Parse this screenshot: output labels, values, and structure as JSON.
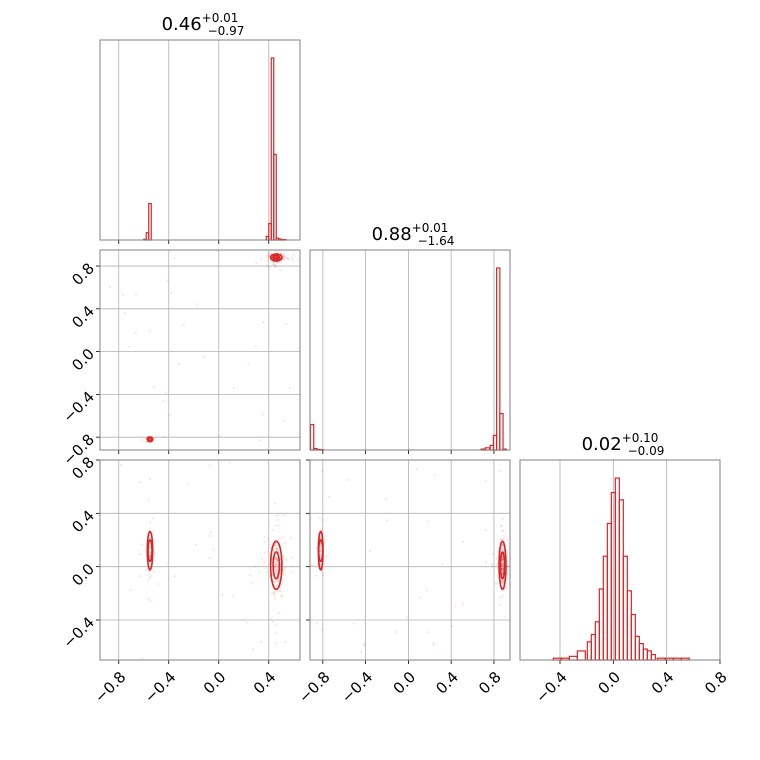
{
  "colors": {
    "series": "#d62728",
    "grid": "#b0b0b0",
    "frame": "#808080"
  },
  "chart_data": {
    "type": "corner",
    "parameters": [
      {
        "title": {
          "median": "0.46",
          "plus": "+0.01",
          "minus": "−0.97"
        },
        "range": [
          -0.95,
          0.65
        ]
      },
      {
        "title": {
          "median": "0.88",
          "plus": "+0.01",
          "minus": "−1.64"
        },
        "range": [
          -0.92,
          0.95
        ]
      },
      {
        "title": {
          "median": "0.02",
          "plus": "+0.10",
          "minus": "−0.09"
        },
        "range": [
          -0.7,
          0.8
        ]
      }
    ],
    "tick_labels": {
      "p0_x": [
        "−0.8",
        "−0.4",
        "0.0",
        "0.4"
      ],
      "p1_x": [
        "−0.8",
        "−0.4",
        "0.0",
        "0.4",
        "0.8"
      ],
      "p2_x": [
        "−0.4",
        "0.0",
        "0.4",
        "0.8"
      ],
      "p1_y": [
        "−0.8",
        "−0.4",
        "0.0",
        "0.4",
        "0.8"
      ],
      "p2_y": [
        "−0.4",
        "0.0",
        "0.4",
        "0.8"
      ]
    },
    "tick_values": {
      "p0_x": [
        -0.8,
        -0.4,
        0.0,
        0.4
      ],
      "p1_x": [
        -0.8,
        -0.4,
        0.0,
        0.4,
        0.8
      ],
      "p2_x": [
        -0.4,
        0.0,
        0.4,
        0.8
      ],
      "p1_y": [
        -0.8,
        -0.4,
        0.0,
        0.4,
        0.8
      ],
      "p2_y": [
        -0.4,
        0.0,
        0.4,
        0.8
      ]
    },
    "histograms": [
      {
        "parameter": 0,
        "bins": [
          -0.59,
          -0.57,
          -0.55,
          -0.53,
          -0.51,
          0.39,
          0.41,
          0.43,
          0.45,
          0.47,
          0.49,
          0.51,
          0.53
        ],
        "counts": [
          0.4,
          4,
          20,
          0,
          0,
          2,
          9,
          100,
          47,
          1,
          0.5,
          0.3,
          0.2
        ]
      },
      {
        "parameter": 1,
        "bins": [
          -0.9,
          -0.87,
          -0.84,
          -0.81,
          0.7,
          0.74,
          0.78,
          0.81,
          0.84,
          0.87,
          0.9
        ],
        "counts": [
          14,
          0.8,
          0.3,
          0.2,
          0.5,
          1.2,
          2.5,
          8,
          100,
          20,
          0.5
        ]
      },
      {
        "parameter": 2,
        "bins": [
          -0.42,
          -0.36,
          -0.3,
          -0.24,
          -0.18,
          -0.15,
          -0.12,
          -0.09,
          -0.06,
          -0.03,
          0.0,
          0.03,
          0.06,
          0.09,
          0.12,
          0.15,
          0.18,
          0.21,
          0.24,
          0.27,
          0.3,
          0.36,
          0.42,
          0.48,
          0.54,
          0.6
        ],
        "counts": [
          1,
          1,
          2,
          5,
          10,
          14,
          21,
          39,
          57,
          75,
          92,
          100,
          88,
          57,
          38,
          25,
          13,
          9,
          6,
          5,
          3,
          1,
          1,
          1,
          1,
          0
        ]
      }
    ],
    "modes": [
      {
        "x": 0.46,
        "y": 0.88,
        "z": 0.01,
        "sx": 0.025,
        "sy": 0.018,
        "sz": 0.1
      },
      {
        "x": -0.55,
        "y": -0.82,
        "z": 0.12,
        "sx": 0.012,
        "sy": 0.012,
        "sz": 0.08
      }
    ],
    "grid": true
  }
}
